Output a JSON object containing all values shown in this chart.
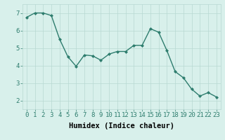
{
  "x": [
    0,
    1,
    2,
    3,
    4,
    5,
    6,
    7,
    8,
    9,
    10,
    11,
    12,
    13,
    14,
    15,
    16,
    17,
    18,
    19,
    20,
    21,
    22,
    23
  ],
  "y": [
    6.75,
    7.0,
    7.0,
    6.85,
    5.5,
    4.5,
    3.95,
    4.6,
    4.55,
    4.3,
    4.65,
    4.8,
    4.8,
    5.15,
    5.15,
    6.1,
    5.9,
    4.85,
    3.65,
    3.3,
    2.65,
    2.25,
    2.45,
    2.2
  ],
  "line_color": "#2e7d6e",
  "marker": "D",
  "marker_size": 2.0,
  "line_width": 1.0,
  "bg_color": "#d8f0eb",
  "grid_color": "#b8d8d2",
  "xlabel": "Humidex (Indice chaleur)",
  "xlabel_fontsize": 7.5,
  "tick_fontsize": 6.5,
  "ylim": [
    1.5,
    7.5
  ],
  "xlim": [
    -0.5,
    23.5
  ],
  "yticks": [
    2,
    3,
    4,
    5,
    6,
    7
  ],
  "xticks": [
    0,
    1,
    2,
    3,
    4,
    5,
    6,
    7,
    8,
    9,
    10,
    11,
    12,
    13,
    14,
    15,
    16,
    17,
    18,
    19,
    20,
    21,
    22,
    23
  ]
}
